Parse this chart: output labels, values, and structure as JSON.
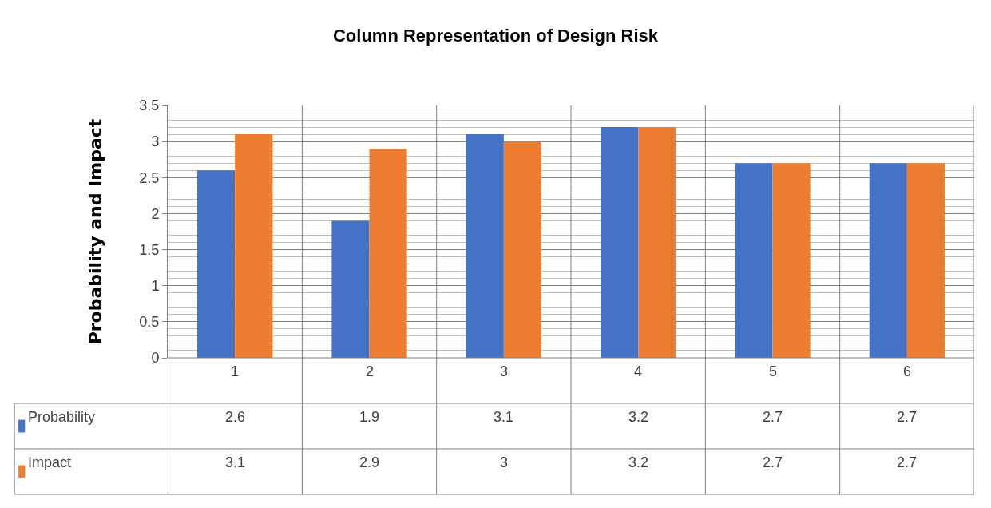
{
  "chart_data": {
    "type": "bar",
    "title": "Column Representation of Design Risk",
    "ylabel": "Probability and Impact",
    "categories": [
      "1",
      "2",
      "3",
      "4",
      "5",
      "6"
    ],
    "series": [
      {
        "name": "Probability",
        "color": "#4472c4",
        "values": [
          2.6,
          1.9,
          3.1,
          3.2,
          2.7,
          2.7
        ]
      },
      {
        "name": "Impact",
        "color": "#ed7d31",
        "values": [
          3.1,
          2.9,
          3,
          3.2,
          2.7,
          2.7
        ]
      }
    ],
    "ylim": [
      0,
      3.5
    ],
    "yticks": [
      0,
      0.5,
      1,
      1.5,
      2,
      2.5,
      3,
      3.5
    ],
    "grid": true,
    "data_labels": true,
    "legend": "bottom left"
  }
}
